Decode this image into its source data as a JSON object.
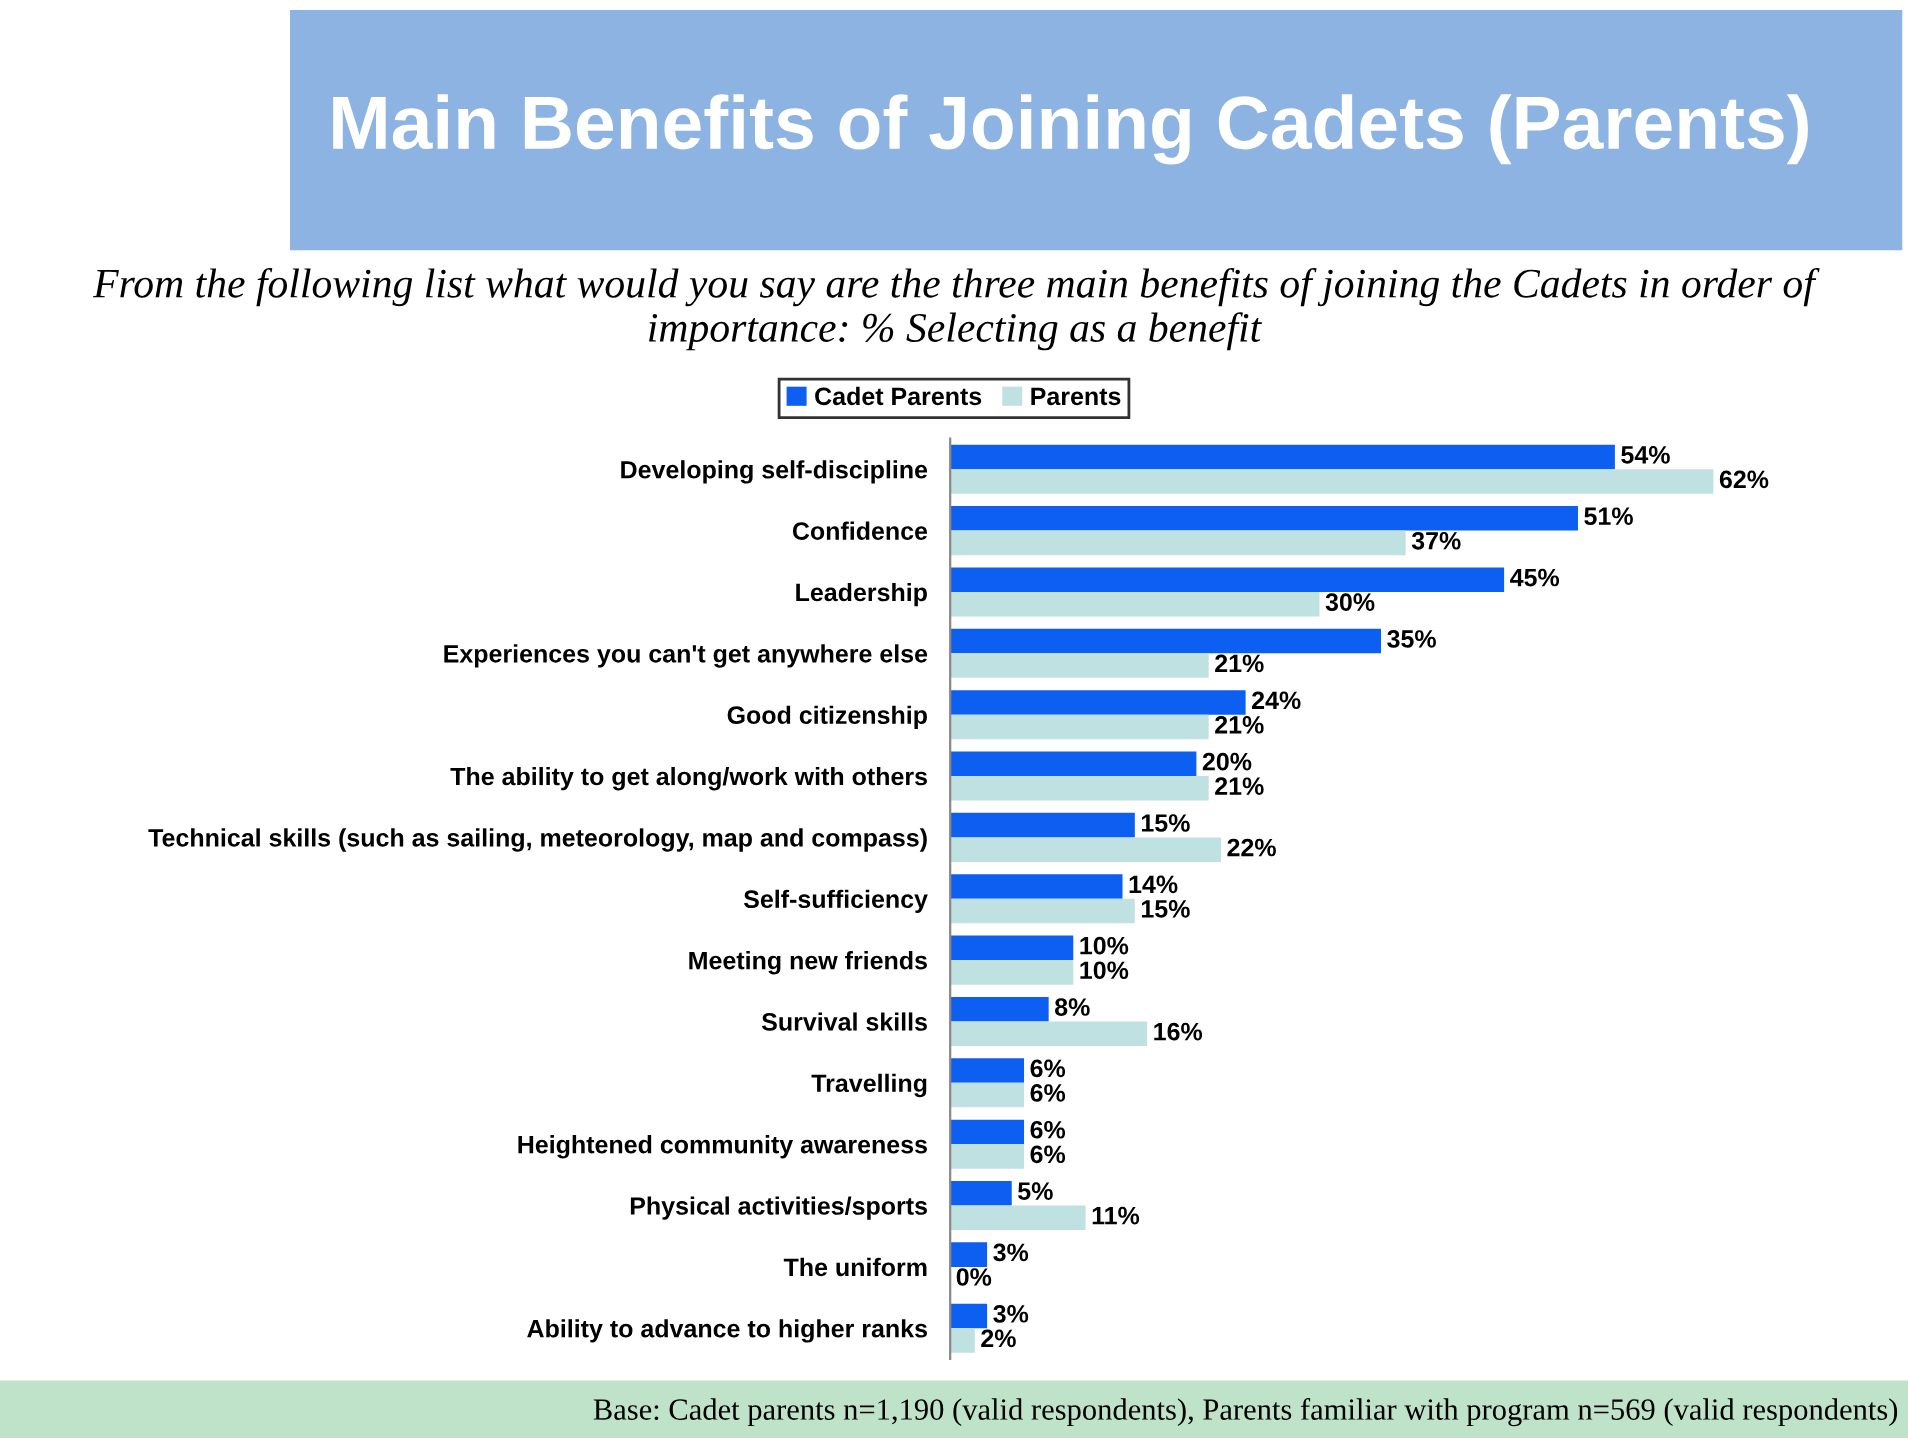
{
  "chart_data": {
    "type": "bar",
    "orientation": "horizontal",
    "title": "Main Benefits of Joining Cadets (Parents)",
    "subtitle": "From the following list what would you say are the three main benefits of joining the Cadets in order of importance: % Selecting as a benefit",
    "categories": [
      "Developing self-discipline",
      "Confidence",
      "Leadership",
      "Experiences you can't get anywhere else",
      "Good citizenship",
      "The ability to get along/work with others",
      "Technical skills (such as sailing, meteorology, map and compass)",
      "Self-sufficiency",
      "Meeting new friends",
      "Survival skills",
      "Travelling",
      "Heightened community awareness",
      "Physical activities/sports",
      "The uniform",
      "Ability to advance to higher ranks"
    ],
    "series": [
      {
        "name": "Cadet Parents",
        "color": "#0d5ff2",
        "values": [
          54,
          51,
          45,
          35,
          24,
          20,
          15,
          14,
          10,
          8,
          6,
          6,
          5,
          3,
          3
        ],
        "value_labels": [
          "54%",
          "51%",
          "45%",
          "35%",
          "24%",
          "20%",
          "15%",
          "14%",
          "10%",
          "8%",
          "6%",
          "6%",
          "5%",
          "3%",
          "3%"
        ]
      },
      {
        "name": "Parents",
        "color": "#bfe1e2",
        "values": [
          62,
          37,
          30,
          21,
          21,
          21,
          22,
          15,
          10,
          16,
          6,
          6,
          11,
          0,
          2
        ],
        "value_labels": [
          "62%",
          "37%",
          "30%",
          "21%",
          "21%",
          "21%",
          "22%",
          "15%",
          "10%",
          "16%",
          "6%",
          "6%",
          "11%",
          "0%",
          "2%"
        ]
      }
    ],
    "legend": "top",
    "annotations": [
      "Base: Cadet parents n=1,190 (valid respondents), Parents familiar with program n=569 (valid respondents)"
    ]
  }
}
